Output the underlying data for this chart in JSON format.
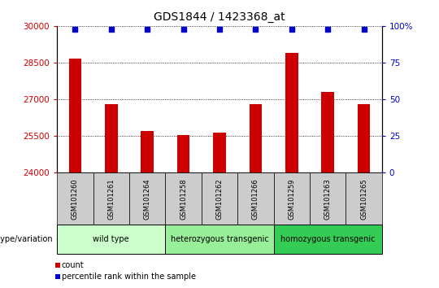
{
  "title": "GDS1844 / 1423368_at",
  "samples": [
    "GSM101260",
    "GSM101261",
    "GSM101264",
    "GSM101258",
    "GSM101262",
    "GSM101266",
    "GSM101259",
    "GSM101263",
    "GSM101265"
  ],
  "counts": [
    28650,
    26800,
    25700,
    25550,
    25650,
    26800,
    28900,
    27300,
    26800
  ],
  "percentile_y": 99,
  "bar_color": "#cc0000",
  "percentile_color": "#0000cc",
  "ylim_left": [
    24000,
    30000
  ],
  "ylim_right": [
    0,
    100
  ],
  "yticks_left": [
    24000,
    25500,
    27000,
    28500,
    30000
  ],
  "yticks_right": [
    0,
    25,
    50,
    75,
    100
  ],
  "groups": [
    {
      "label": "wild type",
      "start": 0,
      "end": 2,
      "color": "#ccffcc"
    },
    {
      "label": "heterozygous transgenic",
      "start": 3,
      "end": 5,
      "color": "#99ee99"
    },
    {
      "label": "homozygous transgenic",
      "start": 6,
      "end": 8,
      "color": "#33cc55"
    }
  ],
  "group_label": "genotype/variation",
  "legend_count_label": "count",
  "legend_percentile_label": "percentile rank within the sample",
  "left_tick_color": "#cc0000",
  "right_tick_color": "#0000cc",
  "sample_box_color": "#cccccc",
  "bar_width": 0.35,
  "xlim": [
    -0.5,
    8.5
  ]
}
